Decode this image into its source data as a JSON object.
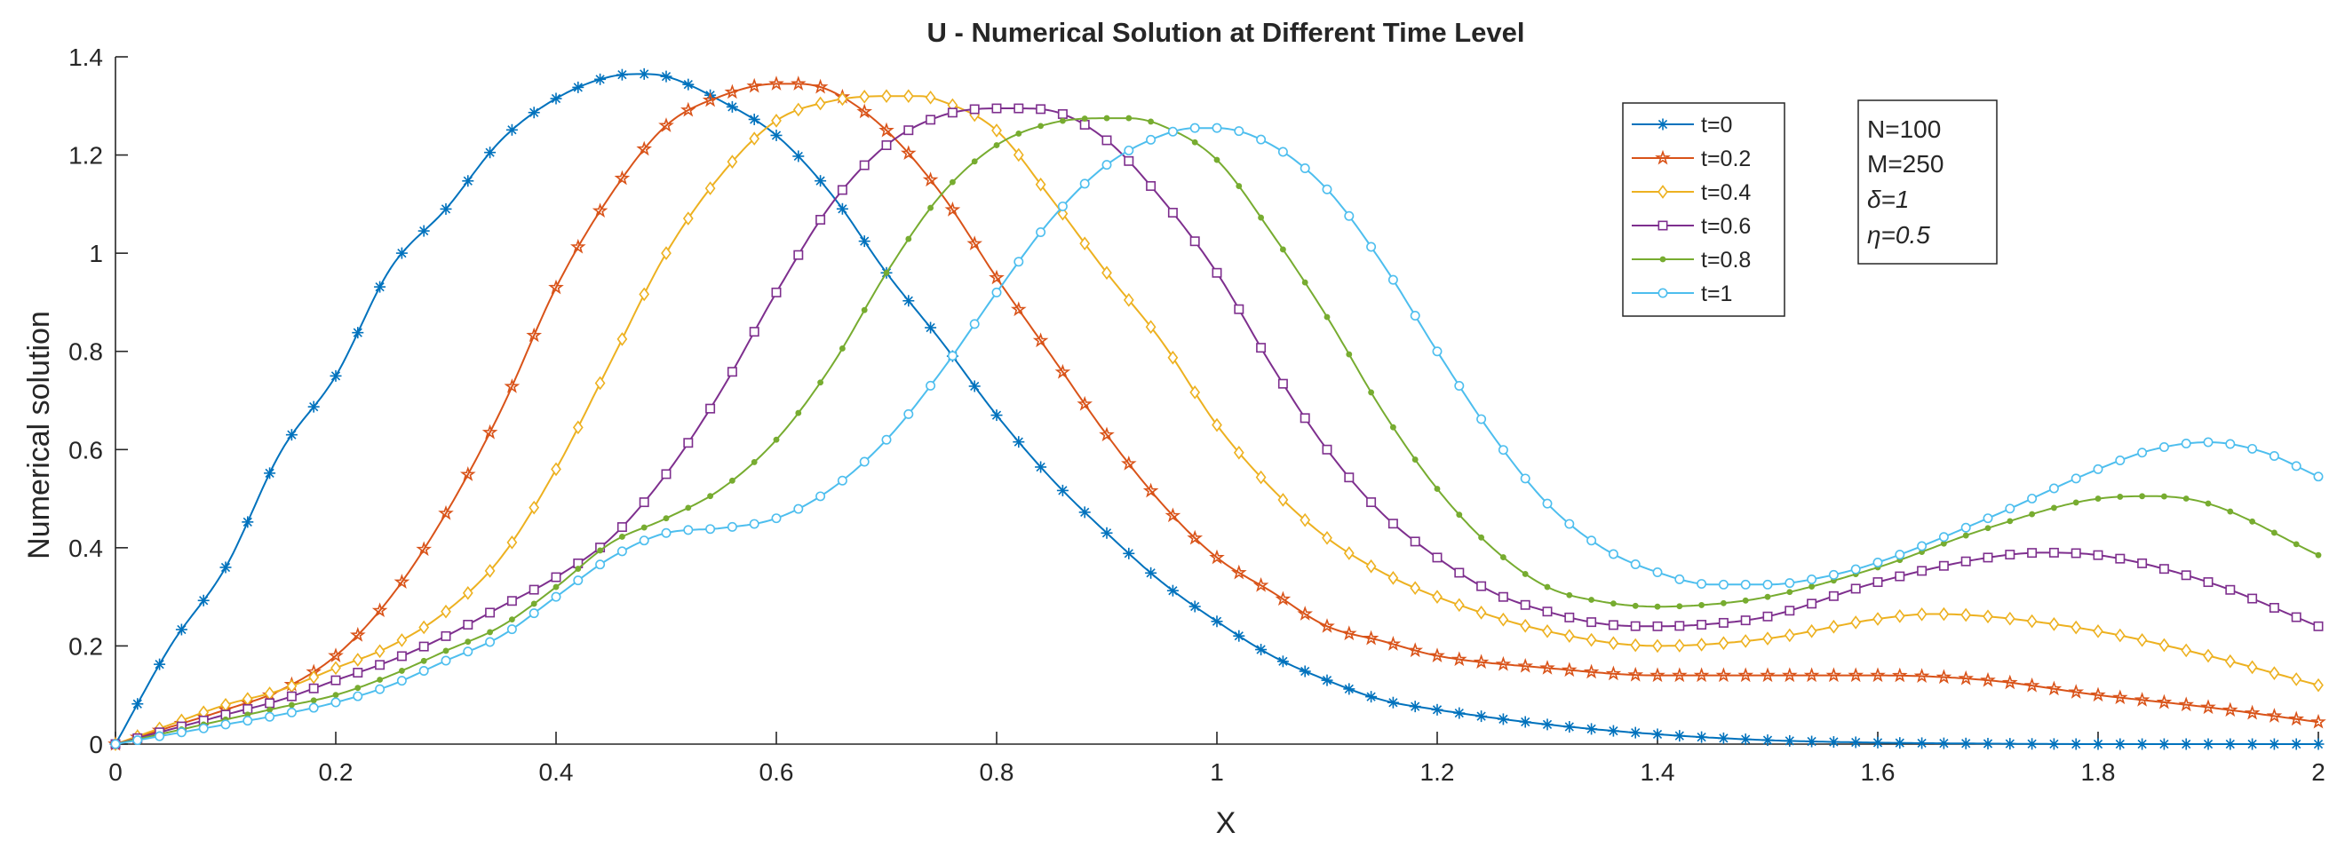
{
  "chart_data": {
    "type": "line",
    "title": "U - Numerical Solution at Different Time Level",
    "xlabel": "X",
    "ylabel": "Numerical solution",
    "xlim": [
      0,
      2
    ],
    "ylim": [
      0,
      1.4
    ],
    "xticks": [
      0,
      0.2,
      0.4,
      0.6,
      0.8,
      1,
      1.2,
      1.4,
      1.6,
      1.8,
      2
    ],
    "xtick_labels": [
      "0",
      "0.2",
      "0.4",
      "0.6",
      "0.8",
      "1",
      "1.2",
      "1.4",
      "1.6",
      "1.8",
      "2"
    ],
    "yticks": [
      0,
      0.2,
      0.4,
      0.6,
      0.8,
      1,
      1.2,
      1.4
    ],
    "ytick_labels": [
      "0",
      "0.2",
      "0.4",
      "0.6",
      "0.8",
      "1",
      "1.2",
      "1.4"
    ],
    "grid": false,
    "legend_position": "top-right",
    "marker_count": 101,
    "x_range": [
      0,
      2
    ],
    "series": [
      {
        "name": "t=0",
        "color": "#0072BD",
        "marker": "asterisk",
        "x": [
          0,
          0.05,
          0.1,
          0.15,
          0.2,
          0.25,
          0.3,
          0.35,
          0.4,
          0.45,
          0.48,
          0.5,
          0.55,
          0.6,
          0.65,
          0.7,
          0.75,
          0.8,
          0.85,
          0.9,
          0.95,
          1.0,
          1.05,
          1.1,
          1.15,
          1.2,
          1.3,
          1.4,
          1.5,
          1.6,
          1.7,
          1.8,
          2.0
        ],
        "y": [
          0,
          0.2,
          0.36,
          0.595,
          0.75,
          0.97,
          1.09,
          1.23,
          1.315,
          1.36,
          1.365,
          1.36,
          1.31,
          1.24,
          1.12,
          0.96,
          0.82,
          0.67,
          0.54,
          0.43,
          0.33,
          0.25,
          0.18,
          0.13,
          0.09,
          0.07,
          0.04,
          0.02,
          0.008,
          0.003,
          0.001,
          0.0,
          0.0
        ]
      },
      {
        "name": "t=0.2",
        "color": "#D95319",
        "marker": "pentagram",
        "x": [
          0,
          0.05,
          0.1,
          0.15,
          0.2,
          0.25,
          0.3,
          0.35,
          0.4,
          0.45,
          0.5,
          0.55,
          0.6,
          0.62,
          0.65,
          0.7,
          0.75,
          0.8,
          0.85,
          0.9,
          0.95,
          1.0,
          1.05,
          1.1,
          1.15,
          1.2,
          1.3,
          1.4,
          1.5,
          1.6,
          1.7,
          1.8,
          1.9,
          2.0
        ],
        "y": [
          0,
          0.035,
          0.07,
          0.11,
          0.18,
          0.3,
          0.47,
          0.68,
          0.93,
          1.12,
          1.26,
          1.32,
          1.345,
          1.345,
          1.33,
          1.25,
          1.12,
          0.95,
          0.79,
          0.63,
          0.49,
          0.38,
          0.31,
          0.24,
          0.21,
          0.18,
          0.155,
          0.14,
          0.14,
          0.14,
          0.13,
          0.1,
          0.075,
          0.045
        ]
      },
      {
        "name": "t=0.4",
        "color": "#EDB120",
        "marker": "diamond",
        "x": [
          0,
          0.05,
          0.1,
          0.15,
          0.2,
          0.25,
          0.3,
          0.35,
          0.4,
          0.45,
          0.5,
          0.55,
          0.6,
          0.65,
          0.7,
          0.73,
          0.75,
          0.8,
          0.85,
          0.9,
          0.95,
          1.0,
          1.05,
          1.1,
          1.15,
          1.2,
          1.3,
          1.4,
          1.5,
          1.6,
          1.65,
          1.7,
          1.8,
          1.9,
          2.0
        ],
        "y": [
          0,
          0.04,
          0.08,
          0.11,
          0.155,
          0.2,
          0.27,
          0.38,
          0.56,
          0.78,
          1.0,
          1.16,
          1.27,
          1.31,
          1.32,
          1.32,
          1.31,
          1.25,
          1.11,
          0.96,
          0.82,
          0.65,
          0.52,
          0.42,
          0.35,
          0.3,
          0.23,
          0.2,
          0.215,
          0.255,
          0.265,
          0.26,
          0.23,
          0.18,
          0.12
        ]
      },
      {
        "name": "t=0.6",
        "color": "#7E2F8E",
        "marker": "square",
        "x": [
          0,
          0.05,
          0.1,
          0.15,
          0.2,
          0.25,
          0.3,
          0.35,
          0.4,
          0.45,
          0.5,
          0.55,
          0.6,
          0.65,
          0.7,
          0.75,
          0.8,
          0.82,
          0.85,
          0.9,
          0.95,
          1.0,
          1.05,
          1.1,
          1.15,
          1.2,
          1.25,
          1.3,
          1.35,
          1.4,
          1.45,
          1.5,
          1.6,
          1.7,
          1.75,
          1.8,
          1.9,
          2.0
        ],
        "y": [
          0,
          0.03,
          0.06,
          0.09,
          0.13,
          0.17,
          0.22,
          0.28,
          0.34,
          0.42,
          0.55,
          0.72,
          0.92,
          1.1,
          1.22,
          1.28,
          1.295,
          1.295,
          1.29,
          1.23,
          1.11,
          0.96,
          0.77,
          0.6,
          0.47,
          0.38,
          0.31,
          0.27,
          0.245,
          0.24,
          0.245,
          0.26,
          0.33,
          0.38,
          0.39,
          0.385,
          0.33,
          0.24
        ]
      },
      {
        "name": "t=0.8",
        "color": "#77AC30",
        "marker": "dot",
        "x": [
          0,
          0.05,
          0.1,
          0.15,
          0.2,
          0.25,
          0.3,
          0.35,
          0.4,
          0.45,
          0.5,
          0.55,
          0.6,
          0.65,
          0.7,
          0.75,
          0.8,
          0.85,
          0.9,
          0.92,
          0.95,
          1.0,
          1.05,
          1.1,
          1.15,
          1.2,
          1.25,
          1.3,
          1.35,
          1.4,
          1.45,
          1.5,
          1.6,
          1.7,
          1.8,
          1.85,
          1.9,
          2.0
        ],
        "y": [
          0,
          0.025,
          0.05,
          0.075,
          0.1,
          0.14,
          0.19,
          0.24,
          0.32,
          0.41,
          0.46,
          0.52,
          0.62,
          0.77,
          0.96,
          1.12,
          1.22,
          1.265,
          1.275,
          1.275,
          1.26,
          1.19,
          1.04,
          0.87,
          0.68,
          0.52,
          0.4,
          0.32,
          0.29,
          0.28,
          0.285,
          0.3,
          0.36,
          0.44,
          0.5,
          0.505,
          0.49,
          0.385
        ]
      },
      {
        "name": "t=1",
        "color": "#4DBEEE",
        "marker": "circle",
        "x": [
          0,
          0.05,
          0.1,
          0.15,
          0.2,
          0.25,
          0.3,
          0.35,
          0.4,
          0.45,
          0.5,
          0.55,
          0.6,
          0.65,
          0.7,
          0.75,
          0.8,
          0.85,
          0.9,
          0.95,
          0.98,
          1.0,
          1.05,
          1.1,
          1.15,
          1.2,
          1.25,
          1.3,
          1.35,
          1.4,
          1.45,
          1.5,
          1.55,
          1.6,
          1.7,
          1.8,
          1.85,
          1.9,
          1.95,
          2.0
        ],
        "y": [
          0,
          0.02,
          0.04,
          0.06,
          0.085,
          0.12,
          0.17,
          0.22,
          0.3,
          0.38,
          0.43,
          0.44,
          0.46,
          0.52,
          0.62,
          0.76,
          0.92,
          1.07,
          1.18,
          1.24,
          1.255,
          1.255,
          1.22,
          1.13,
          0.98,
          0.8,
          0.63,
          0.49,
          0.4,
          0.35,
          0.325,
          0.325,
          0.34,
          0.37,
          0.46,
          0.56,
          0.6,
          0.615,
          0.595,
          0.545
        ]
      }
    ]
  },
  "annotation": {
    "lines": [
      "N=100",
      "M=250",
      "δ=1",
      "η=0.5"
    ]
  }
}
